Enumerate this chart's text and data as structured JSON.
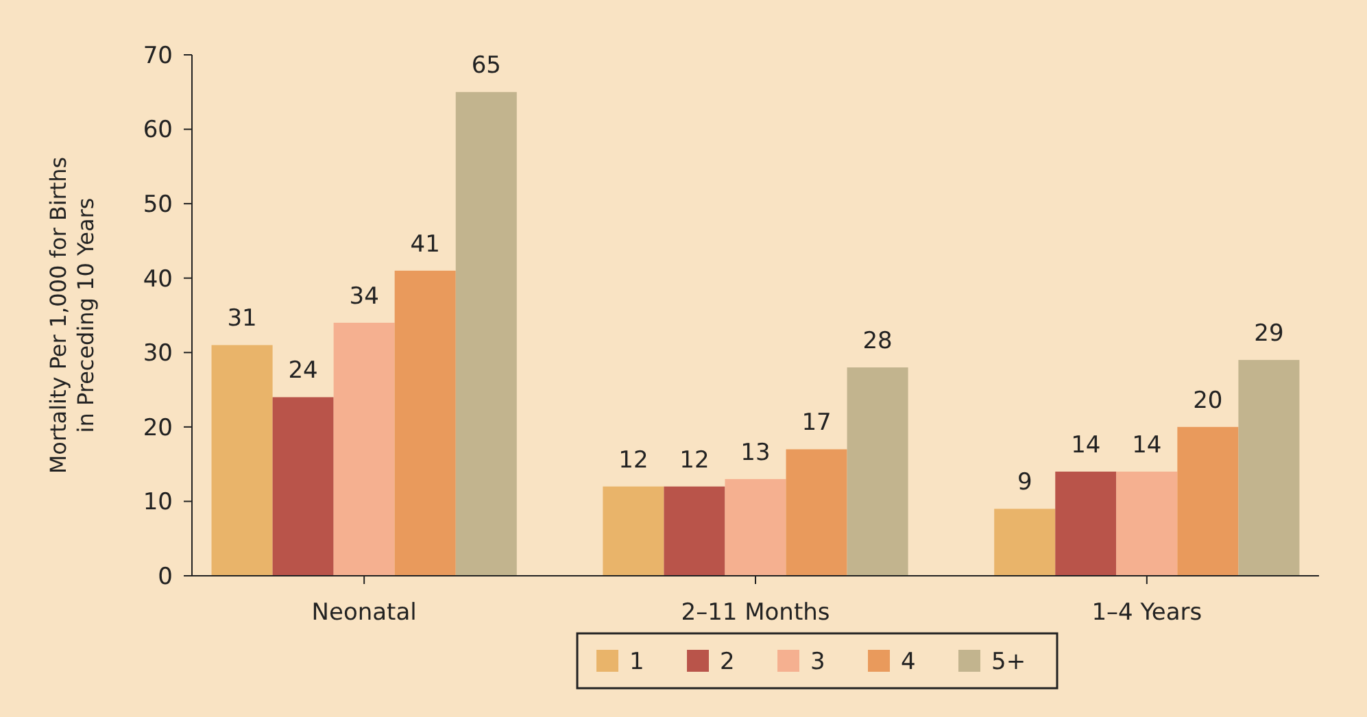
{
  "chart_data": {
    "type": "bar",
    "ylabel": "Mortality Per 1,000 for Births in Preceding 10 Years",
    "categories": [
      "Neonatal",
      "2–11 Months",
      "1–4 Years"
    ],
    "series": [
      {
        "name": "1",
        "color": "#e9b46a",
        "values": [
          31,
          12,
          9
        ]
      },
      {
        "name": "2",
        "color": "#b9544a",
        "values": [
          24,
          12,
          14
        ]
      },
      {
        "name": "3",
        "color": "#f5b090",
        "values": [
          34,
          13,
          14
        ]
      },
      {
        "name": "4",
        "color": "#e99a5c",
        "values": [
          41,
          17,
          20
        ]
      },
      {
        "name": "5+",
        "color": "#c2b48e",
        "values": [
          65,
          28,
          29
        ]
      }
    ],
    "ylim": [
      0,
      70
    ],
    "yticks": [
      0,
      10,
      20,
      30,
      40,
      50,
      60,
      70
    ],
    "data_labels": true,
    "legend": "bottom",
    "grid": false
  }
}
